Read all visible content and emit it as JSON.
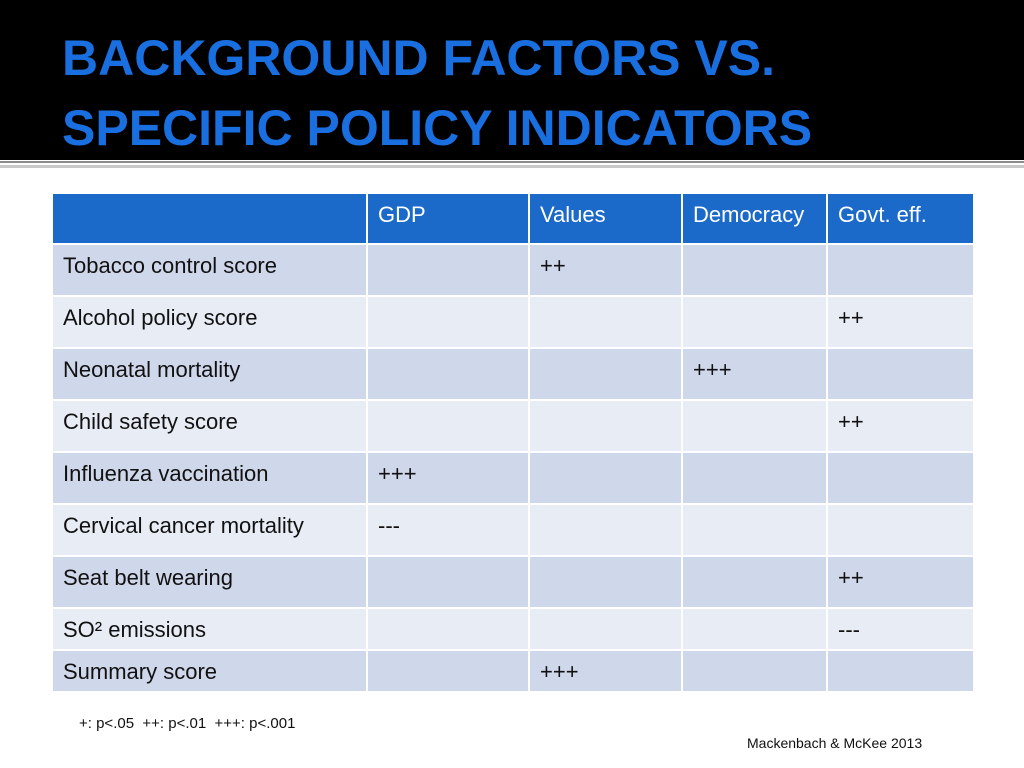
{
  "title": {
    "line1": "BACKGROUND FACTORS VS.",
    "line2": "SPECIFIC POLICY INDICATORS"
  },
  "colors": {
    "title_band": "#000000",
    "title_text": "#1a6fe0",
    "header_row": "#1b6ac9",
    "row_dark": "#cfd7ea",
    "row_light": "#e8ecf5"
  },
  "table": {
    "columns": [
      "",
      "GDP",
      "Values",
      "Democracy",
      "Govt. eff."
    ],
    "rows": [
      [
        "Tobacco control score",
        "",
        "++",
        "",
        ""
      ],
      [
        "Alcohol policy score",
        "",
        "",
        "",
        "++"
      ],
      [
        "Neonatal mortality",
        "",
        "",
        "+++",
        ""
      ],
      [
        "Child safety score",
        "",
        "",
        "",
        "++"
      ],
      [
        "Influenza vaccination",
        "+++",
        "",
        "",
        ""
      ],
      [
        "Cervical cancer mortality",
        "---",
        "",
        "",
        ""
      ],
      [
        "Seat belt wearing",
        "",
        "",
        "",
        "++"
      ],
      [
        "SO² emissions",
        "",
        "",
        "",
        "---"
      ],
      [
        "Summary score",
        "",
        "+++",
        "",
        ""
      ]
    ]
  },
  "footnote": "+: p<.05  ++: p<.01  +++: p<.001",
  "source": "Mackenbach & McKee 2013"
}
